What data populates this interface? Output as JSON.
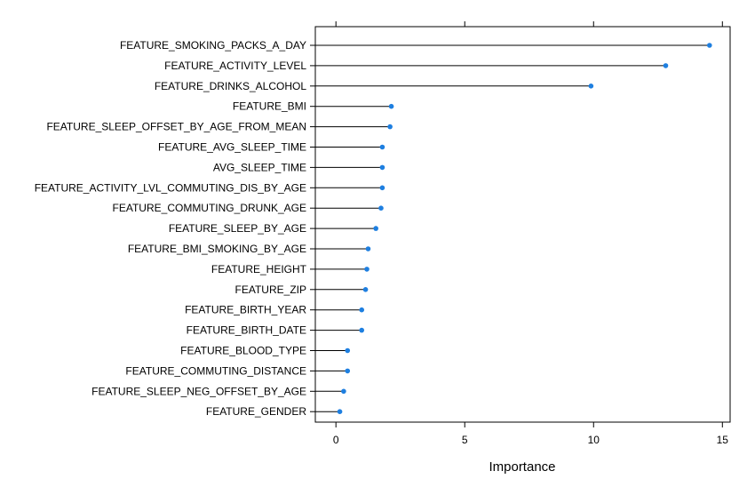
{
  "chart_data": {
    "type": "lollipop",
    "title": "",
    "xlabel": "Importance",
    "ylabel": "",
    "xlim": [
      -0.8,
      15.3
    ],
    "xticks": [
      0,
      5,
      10,
      15
    ],
    "grid": false,
    "legend": "none",
    "colors": {
      "point": "#1e7fe0",
      "line": "#000000",
      "frame": "#000000"
    },
    "categories": [
      "FEATURE_SMOKING_PACKS_A_DAY",
      "FEATURE_ACTIVITY_LEVEL",
      "FEATURE_DRINKS_ALCOHOL",
      "FEATURE_BMI",
      "FEATURE_SLEEP_OFFSET_BY_AGE_FROM_MEAN",
      "FEATURE_AVG_SLEEP_TIME",
      "AVG_SLEEP_TIME",
      "FEATURE_ACTIVITY_LVL_COMMUTING_DIS_BY_AGE",
      "FEATURE_COMMUTING_DRUNK_AGE",
      "FEATURE_SLEEP_BY_AGE",
      "FEATURE_BMI_SMOKING_BY_AGE",
      "FEATURE_HEIGHT",
      "FEATURE_ZIP",
      "FEATURE_BIRTH_YEAR",
      "FEATURE_BIRTH_DATE",
      "FEATURE_BLOOD_TYPE",
      "FEATURE_COMMUTING_DISTANCE",
      "FEATURE_SLEEP_NEG_OFFSET_BY_AGE",
      "FEATURE_GENDER"
    ],
    "values": [
      14.5,
      12.8,
      9.9,
      2.15,
      2.1,
      1.8,
      1.8,
      1.8,
      1.75,
      1.55,
      1.25,
      1.2,
      1.15,
      1.0,
      1.0,
      0.45,
      0.45,
      0.3,
      0.15
    ]
  }
}
